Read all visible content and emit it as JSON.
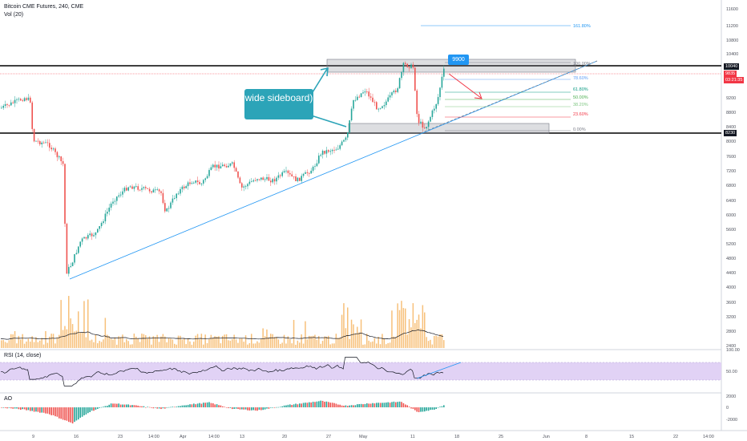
{
  "header": {
    "title": "Bitcoin CME Futures, 240, CME",
    "volume_label": "Vol (20)",
    "rsi_label": "RSI (14, close)",
    "ao_label": "AO"
  },
  "price_axis": {
    "ticks": [
      "11600",
      "11200",
      "10800",
      "10400",
      "10040",
      "9835",
      "03:21:35",
      "9200",
      "8800",
      "8400",
      "8230",
      "8000",
      "7600",
      "7200",
      "6800",
      "6400",
      "6000",
      "5600",
      "5200",
      "4800",
      "4400",
      "4000",
      "3600",
      "3200",
      "2800",
      "2400"
    ]
  },
  "rsi_axis": {
    "ticks": [
      "100.00",
      "50.00"
    ]
  },
  "ao_axis": {
    "ticks": [
      "2000",
      "0",
      "-2000"
    ]
  },
  "time_axis": {
    "ticks": [
      "9",
      "16",
      "23",
      "14:00",
      "Apr",
      "14:00",
      "13",
      "20",
      "27",
      "May",
      "11",
      "18",
      "25",
      "Jun",
      "8",
      "15",
      "22",
      "14:00"
    ]
  },
  "fibonacci": [
    {
      "label": "161.80%",
      "color": "#2196f3"
    },
    {
      "label": "100.00%",
      "color": "#787b86"
    },
    {
      "label": "78.60%",
      "color": "#5b9cf6"
    },
    {
      "label": "61.80%",
      "color": "#089981"
    },
    {
      "label": "50.00%",
      "color": "#4caf50"
    },
    {
      "label": "38.20%",
      "color": "#81c784"
    },
    {
      "label": "23.60%",
      "color": "#f23645"
    },
    {
      "label": "0.00%",
      "color": "#787b86"
    }
  ],
  "annotations": {
    "callout_text": "wide sideboard)",
    "price_marker": "9900"
  },
  "price_tags": {
    "resistance": "10040",
    "last": "9835",
    "countdown": "03:21:35",
    "support": "8230"
  },
  "colors": {
    "up": "#26a69a",
    "down": "#ef5350",
    "volume": "#f7c07a",
    "rsi_band": "#e1d2f5",
    "trendline": "#2196f3",
    "callout": "#2ca4b8"
  }
}
